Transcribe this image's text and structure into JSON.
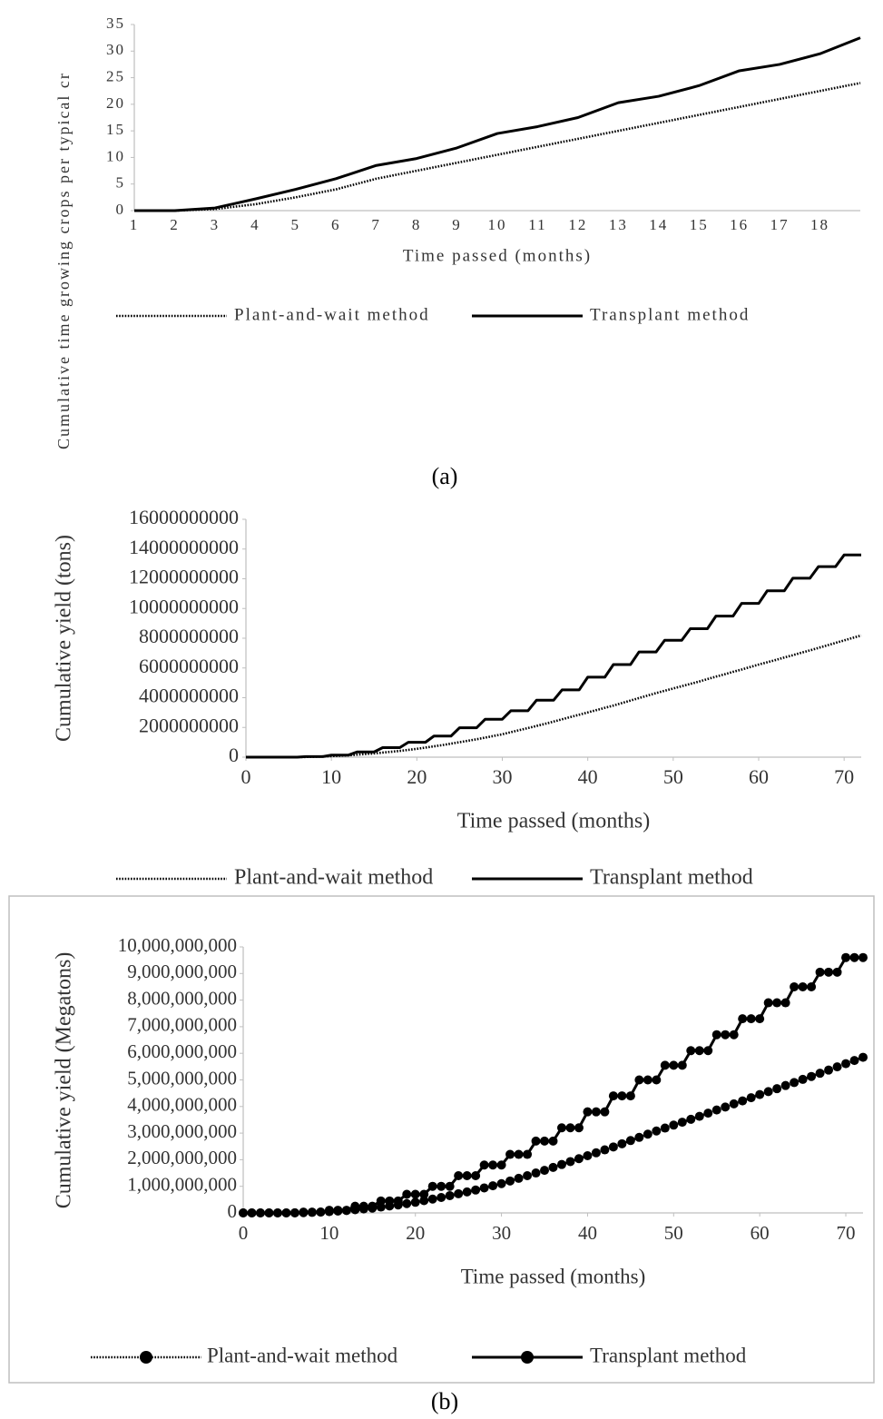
{
  "chart_data": [
    {
      "type": "line",
      "y_label": "Cumulative time growing crops per typical cr",
      "x_label": "Time passed (months)",
      "categories": [
        "1",
        "2",
        "3",
        "4",
        "5",
        "6",
        "7",
        "8",
        "9",
        "10",
        "11",
        "12",
        "13",
        "14",
        "15",
        "16",
        "17",
        "18",
        null
      ],
      "ylim": [
        0,
        35
      ],
      "yticks": [
        0,
        5,
        10,
        15,
        20,
        25,
        30,
        35
      ],
      "grid": false,
      "legend": "bottom",
      "markers": false,
      "series": [
        {
          "name": "Plant-and-wait method",
          "color": "#000000",
          "style": "dotted",
          "values": [
            0,
            0,
            0.3,
            1.2,
            2.5,
            4,
            6,
            7.5,
            9,
            10.5,
            12,
            13.5,
            15,
            16.5,
            18,
            19.5,
            21,
            22.5,
            24
          ]
        },
        {
          "name": "Transplant method",
          "color": "#000000",
          "style": "solid",
          "values": [
            0,
            0,
            0.5,
            2.2,
            4,
            6,
            8.5,
            9.8,
            11.8,
            14.5,
            15.8,
            17.5,
            20.3,
            21.5,
            23.5,
            26.3,
            27.5,
            29.5,
            32.5
          ]
        }
      ]
    },
    {
      "type": "line",
      "y_label": "Cumulative yield (tons)",
      "x_label": "Time passed (months)",
      "x": [
        0,
        1,
        2,
        3,
        4,
        5,
        6,
        7,
        8,
        9,
        10,
        11,
        12,
        13,
        14,
        15,
        16,
        17,
        18,
        19,
        20,
        21,
        22,
        23,
        24,
        25,
        26,
        27,
        28,
        29,
        30,
        31,
        32,
        33,
        34,
        35,
        36,
        37,
        38,
        39,
        40,
        41,
        42,
        43,
        44,
        45,
        46,
        47,
        48,
        49,
        50,
        51,
        52,
        53,
        54,
        55,
        56,
        57,
        58,
        59,
        60,
        61,
        62,
        63,
        64,
        65,
        66,
        67,
        68,
        69,
        70,
        71,
        72
      ],
      "xlim": [
        0,
        72
      ],
      "xticks": [
        0,
        10,
        20,
        30,
        40,
        50,
        60,
        70
      ],
      "ylim": [
        0,
        16000000000
      ],
      "yticks": [
        0,
        2000000000,
        4000000000,
        6000000000,
        8000000000,
        10000000000,
        12000000000,
        14000000000,
        16000000000
      ],
      "grid": false,
      "legend": "bottom",
      "markers": false,
      "series": [
        {
          "name": "Plant-and-wait method",
          "color": "#000000",
          "style": "dotted",
          "values": [
            0,
            0,
            0,
            0,
            0,
            0,
            7000000,
            14000000,
            28000000,
            49000000,
            70000000,
            98000000,
            126000000,
            168000000,
            210000000,
            252000000,
            308000000,
            364000000,
            420000000,
            490000000,
            560000000,
            644000000,
            728000000,
            812000000,
            910000000,
            1008000000,
            1106000000,
            1204000000,
            1316000000,
            1428000000,
            1540000000,
            1680000000,
            1820000000,
            1960000000,
            2100000000,
            2240000000,
            2394000000,
            2548000000,
            2702000000,
            2856000000,
            3010000000,
            3164000000,
            3318000000,
            3472000000,
            3640000000,
            3808000000,
            3976000000,
            4144000000,
            4312000000,
            4466000000,
            4620000000,
            4774000000,
            4928000000,
            5082000000,
            5250000000,
            5418000000,
            5572000000,
            5740000000,
            5894000000,
            6062000000,
            6230000000,
            6384000000,
            6538000000,
            6706000000,
            6860000000,
            7028000000,
            7182000000,
            7350000000,
            7518000000,
            7686000000,
            7854000000,
            8022000000,
            8190000000
          ]
        },
        {
          "name": "Transplant method",
          "color": "#000000",
          "style": "solid",
          "values": [
            0,
            0,
            0,
            0,
            0,
            0,
            0,
            40000000,
            40000000,
            40000000,
            140000000,
            140000000,
            140000000,
            350000000,
            350000000,
            350000000,
            640000000,
            640000000,
            640000000,
            1000000000,
            1000000000,
            1000000000,
            1420000000,
            1420000000,
            1420000000,
            1980000000,
            1980000000,
            1980000000,
            2550000000,
            2550000000,
            2550000000,
            3120000000,
            3120000000,
            3120000000,
            3830000000,
            3830000000,
            3830000000,
            4530000000,
            4530000000,
            4530000000,
            5380000000,
            5380000000,
            5380000000,
            6230000000,
            6230000000,
            6230000000,
            7080000000,
            7080000000,
            7080000000,
            7860000000,
            7860000000,
            7860000000,
            8640000000,
            8640000000,
            8640000000,
            9490000000,
            9490000000,
            9490000000,
            10340000000,
            10340000000,
            10340000000,
            11190000000,
            11190000000,
            11190000000,
            12040000000,
            12040000000,
            12040000000,
            12820000000,
            12820000000,
            12820000000,
            13600000000,
            13600000000,
            13600000000
          ]
        }
      ]
    },
    {
      "type": "line",
      "y_label": "Cumulative yield (Megatons)",
      "x_label": "Time passed (months)",
      "x": [
        0,
        1,
        2,
        3,
        4,
        5,
        6,
        7,
        8,
        9,
        10,
        11,
        12,
        13,
        14,
        15,
        16,
        17,
        18,
        19,
        20,
        21,
        22,
        23,
        24,
        25,
        26,
        27,
        28,
        29,
        30,
        31,
        32,
        33,
        34,
        35,
        36,
        37,
        38,
        39,
        40,
        41,
        42,
        43,
        44,
        45,
        46,
        47,
        48,
        49,
        50,
        51,
        52,
        53,
        54,
        55,
        56,
        57,
        58,
        59,
        60,
        61,
        62,
        63,
        64,
        65,
        66,
        67,
        68,
        69,
        70,
        71,
        72
      ],
      "xlim": [
        0,
        72
      ],
      "xticks": [
        0,
        10,
        20,
        30,
        40,
        50,
        60,
        70
      ],
      "ylim": [
        0,
        10000000000
      ],
      "yticks": [
        0,
        {
          "value": 1000000000,
          "label": "1,000,000,000"
        },
        {
          "value": 2000000000,
          "label": "2,000,000,000"
        },
        {
          "value": 3000000000,
          "label": "3,000,000,000"
        },
        {
          "value": 4000000000,
          "label": "4,000,000,000"
        },
        {
          "value": 5000000000,
          "label": "5,000,000,000"
        },
        {
          "value": 6000000000,
          "label": "6,000,000,000"
        },
        {
          "value": 7000000000,
          "label": "7,000,000,000"
        },
        {
          "value": 8000000000,
          "label": "8,000,000,000"
        },
        {
          "value": 9000000000,
          "label": "9,000,000,000"
        },
        {
          "value": 10000000000,
          "label": "10,000,000,000"
        }
      ],
      "grid": false,
      "legend": "bottom",
      "markers": true,
      "series": [
        {
          "name": "Plant-and-wait method",
          "color": "#000000",
          "style": "dotted",
          "values": [
            0,
            0,
            0,
            0,
            0,
            0,
            5000000,
            10000000,
            20000000,
            35000000,
            50000000,
            70000000,
            90000000,
            120000000,
            150000000,
            180000000,
            220000000,
            260000000,
            300000000,
            350000000,
            400000000,
            460000000,
            520000000,
            580000000,
            650000000,
            720000000,
            790000000,
            860000000,
            940000000,
            1020000000,
            1100000000,
            1200000000,
            1300000000,
            1400000000,
            1500000000,
            1600000000,
            1710000000,
            1820000000,
            1930000000,
            2040000000,
            2150000000,
            2260000000,
            2370000000,
            2480000000,
            2600000000,
            2720000000,
            2840000000,
            2960000000,
            3080000000,
            3190000000,
            3300000000,
            3410000000,
            3520000000,
            3630000000,
            3750000000,
            3870000000,
            3980000000,
            4100000000,
            4210000000,
            4330000000,
            4450000000,
            4560000000,
            4670000000,
            4790000000,
            4900000000,
            5020000000,
            5130000000,
            5250000000,
            5370000000,
            5490000000,
            5610000000,
            5730000000,
            5850000000
          ]
        },
        {
          "name": "Transplant method",
          "color": "#000000",
          "style": "solid",
          "values": [
            0,
            0,
            0,
            0,
            0,
            0,
            0,
            30000000,
            30000000,
            30000000,
            100000000,
            100000000,
            100000000,
            250000000,
            250000000,
            250000000,
            450000000,
            450000000,
            450000000,
            700000000,
            700000000,
            700000000,
            1000000000,
            1000000000,
            1000000000,
            1400000000,
            1400000000,
            1400000000,
            1800000000,
            1800000000,
            1800000000,
            2200000000,
            2200000000,
            2200000000,
            2700000000,
            2700000000,
            2700000000,
            3200000000,
            3200000000,
            3200000000,
            3800000000,
            3800000000,
            3800000000,
            4400000000,
            4400000000,
            4400000000,
            5000000000,
            5000000000,
            5000000000,
            5550000000,
            5550000000,
            5550000000,
            6100000000,
            6100000000,
            6100000000,
            6700000000,
            6700000000,
            6700000000,
            7300000000,
            7300000000,
            7300000000,
            7900000000,
            7900000000,
            7900000000,
            8500000000,
            8500000000,
            8500000000,
            9050000000,
            9050000000,
            9050000000,
            9600000000,
            9600000000,
            9600000000
          ]
        }
      ]
    }
  ],
  "captions": [
    "(a)",
    "(b)"
  ]
}
